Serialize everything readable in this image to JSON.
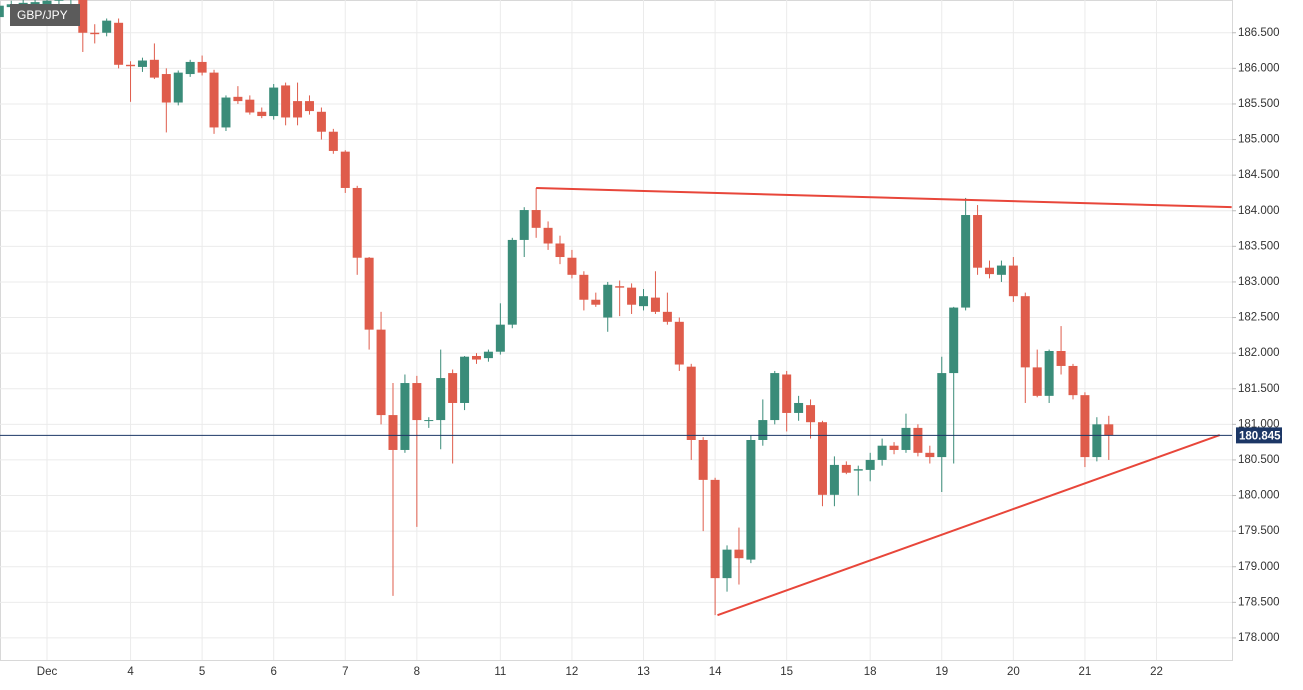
{
  "chart_data": {
    "type": "candlestick",
    "title": "GBP/JPY",
    "categories": [
      null,
      null,
      null,
      null,
      "Dec",
      null,
      null,
      null,
      null,
      null,
      null,
      "4",
      null,
      null,
      null,
      null,
      null,
      "5",
      null,
      null,
      null,
      null,
      null,
      "6",
      null,
      null,
      null,
      null,
      null,
      "7",
      null,
      null,
      null,
      null,
      null,
      "8",
      null,
      null,
      null,
      null,
      null,
      null,
      "11",
      null,
      null,
      null,
      null,
      null,
      "12",
      null,
      null,
      null,
      null,
      null,
      "13",
      null,
      null,
      null,
      null,
      null,
      "14",
      null,
      null,
      null,
      null,
      null,
      "15",
      null,
      null,
      null,
      null,
      null,
      null,
      "18",
      null,
      null,
      null,
      null,
      null,
      "19",
      null,
      null,
      null,
      null,
      null,
      "20",
      null,
      null,
      null,
      null,
      null,
      "21",
      null,
      null,
      null,
      null,
      null,
      "22"
    ],
    "open": [
      186.72,
      186.86,
      186.88,
      186.9,
      186.9,
      186.95,
      186.97,
      186.98,
      186.5,
      186.5,
      186.64,
      186.05,
      186.02,
      186.12,
      185.92,
      185.52,
      185.92,
      186.09,
      185.94,
      185.17,
      185.6,
      185.56,
      185.39,
      185.33,
      185.76,
      185.54,
      185.54,
      185.39,
      185.11,
      184.83,
      184.32,
      183.34,
      182.33,
      181.13,
      180.64,
      181.58,
      181.05,
      181.06,
      181.72,
      181.3,
      181.96,
      181.93,
      182.02,
      182.4,
      183.59,
      184.01,
      183.76,
      183.54,
      183.34,
      183.1,
      182.75,
      182.5,
      182.94,
      182.92,
      182.66,
      182.78,
      182.58,
      182.44,
      181.81,
      180.78,
      180.22,
      178.84,
      179.24,
      179.1,
      180.78,
      181.06,
      181.7,
      181.16,
      181.27,
      181.03,
      180.01,
      180.43,
      180.35,
      180.36,
      180.5,
      180.7,
      180.64,
      180.95,
      180.6,
      180.54,
      181.72,
      182.64,
      183.94,
      183.2,
      183.1,
      183.23,
      182.8,
      181.8,
      181.4,
      182.03,
      181.82,
      181.41,
      180.54,
      181.0,
      null,
      null,
      null,
      null
    ],
    "high": [
      186.95,
      186.95,
      186.96,
      186.98,
      187.0,
      187.02,
      187.05,
      187.05,
      186.62,
      186.7,
      186.7,
      186.1,
      186.15,
      186.35,
      186.0,
      185.97,
      186.12,
      186.18,
      185.98,
      185.62,
      185.75,
      185.62,
      185.45,
      185.78,
      185.8,
      185.8,
      185.62,
      185.45,
      185.15,
      184.85,
      184.35,
      183.35,
      182.58,
      181.58,
      181.7,
      181.68,
      181.1,
      182.05,
      181.77,
      181.96,
      182.0,
      182.05,
      182.7,
      183.62,
      184.05,
      184.32,
      183.85,
      183.65,
      183.45,
      183.15,
      182.85,
      183.0,
      183.02,
      182.98,
      182.9,
      183.15,
      182.85,
      182.5,
      181.85,
      180.82,
      180.25,
      179.3,
      179.55,
      180.85,
      181.35,
      181.75,
      181.75,
      181.4,
      181.35,
      181.05,
      180.55,
      180.48,
      180.42,
      180.6,
      180.8,
      180.75,
      181.15,
      181.0,
      180.7,
      181.95,
      182.65,
      184.18,
      184.08,
      183.3,
      183.3,
      183.35,
      182.85,
      182.05,
      182.05,
      182.38,
      181.85,
      181.45,
      181.1,
      181.12,
      null,
      null,
      null,
      null
    ],
    "low": [
      186.6,
      186.8,
      186.82,
      186.84,
      186.85,
      186.88,
      186.9,
      186.23,
      186.35,
      186.45,
      186.0,
      185.53,
      185.95,
      185.85,
      185.1,
      185.48,
      185.88,
      185.9,
      185.08,
      185.12,
      185.5,
      185.35,
      185.3,
      185.28,
      185.2,
      185.2,
      185.35,
      185.0,
      184.8,
      184.25,
      183.1,
      182.05,
      181.0,
      178.59,
      180.6,
      179.56,
      180.95,
      180.65,
      180.45,
      181.2,
      181.85,
      181.88,
      181.98,
      182.35,
      183.35,
      183.62,
      183.45,
      183.25,
      183.05,
      182.6,
      182.65,
      182.3,
      182.52,
      182.55,
      182.6,
      182.55,
      182.4,
      181.75,
      180.5,
      179.5,
      178.32,
      178.65,
      178.75,
      179.05,
      180.7,
      181.0,
      180.9,
      181.05,
      180.8,
      179.85,
      179.85,
      180.3,
      180.0,
      180.2,
      180.42,
      180.58,
      180.6,
      180.55,
      180.45,
      180.05,
      180.45,
      182.6,
      183.1,
      183.05,
      183.0,
      182.72,
      181.3,
      181.38,
      181.3,
      181.7,
      181.35,
      180.4,
      180.48,
      180.5,
      null,
      null,
      null,
      null
    ],
    "close": [
      186.88,
      186.9,
      186.92,
      186.93,
      186.95,
      186.97,
      186.98,
      186.5,
      186.48,
      186.67,
      186.05,
      186.03,
      186.11,
      185.87,
      185.52,
      185.94,
      186.09,
      185.94,
      185.17,
      185.59,
      185.54,
      185.38,
      185.33,
      185.73,
      185.31,
      185.31,
      185.4,
      185.11,
      184.84,
      184.32,
      183.34,
      182.33,
      181.13,
      180.64,
      181.58,
      181.06,
      181.06,
      181.65,
      181.3,
      181.95,
      181.91,
      182.02,
      182.4,
      183.59,
      184.01,
      183.76,
      183.54,
      183.35,
      183.1,
      182.75,
      182.68,
      182.96,
      182.92,
      182.68,
      182.8,
      182.58,
      182.44,
      181.84,
      180.78,
      180.22,
      178.84,
      179.24,
      179.12,
      180.78,
      181.06,
      181.72,
      181.16,
      181.3,
      181.03,
      180.01,
      180.43,
      180.32,
      180.37,
      180.5,
      180.7,
      180.64,
      180.95,
      180.6,
      180.54,
      181.72,
      182.64,
      183.94,
      183.2,
      183.11,
      183.23,
      182.8,
      181.8,
      181.4,
      182.03,
      181.82,
      181.41,
      180.54,
      181.0,
      180.845,
      null,
      null,
      null,
      null
    ],
    "up_color": "#3a8c79",
    "down_color": "#df5c4b",
    "ylim": [
      177.69,
      186.96
    ],
    "yticks": [
      {
        "value": 178,
        "label": "178.000"
      },
      {
        "value": 178.5,
        "label": "178.500"
      },
      {
        "value": 179,
        "label": "179.000"
      },
      {
        "value": 179.5,
        "label": "179.500"
      },
      {
        "value": 180,
        "label": "180.000"
      },
      {
        "value": 180.5,
        "label": "180.500"
      },
      {
        "value": 181,
        "label": "181.000"
      },
      {
        "value": 181.5,
        "label": "181.500"
      },
      {
        "value": 182,
        "label": "182.000"
      },
      {
        "value": 182.5,
        "label": "182.500"
      },
      {
        "value": 183,
        "label": "183.000"
      },
      {
        "value": 183.5,
        "label": "183.500"
      },
      {
        "value": 184,
        "label": "184.000"
      },
      {
        "value": 184.5,
        "label": "184.500"
      },
      {
        "value": 185,
        "label": "185.000"
      },
      {
        "value": 185.5,
        "label": "185.500"
      },
      {
        "value": 186,
        "label": "186.000"
      },
      {
        "value": 186.5,
        "label": "186.500"
      }
    ],
    "grid": true,
    "current_price": 180.845,
    "current_price_color": "#1c3766",
    "trendlines": [
      {
        "color": "#e8463a",
        "x": [
          45,
          103.3
        ],
        "y": [
          184.32,
          184.05
        ]
      },
      {
        "color": "#e8463a",
        "x": [
          60.2,
          102.3
        ],
        "y": [
          178.32,
          180.85
        ]
      }
    ]
  }
}
